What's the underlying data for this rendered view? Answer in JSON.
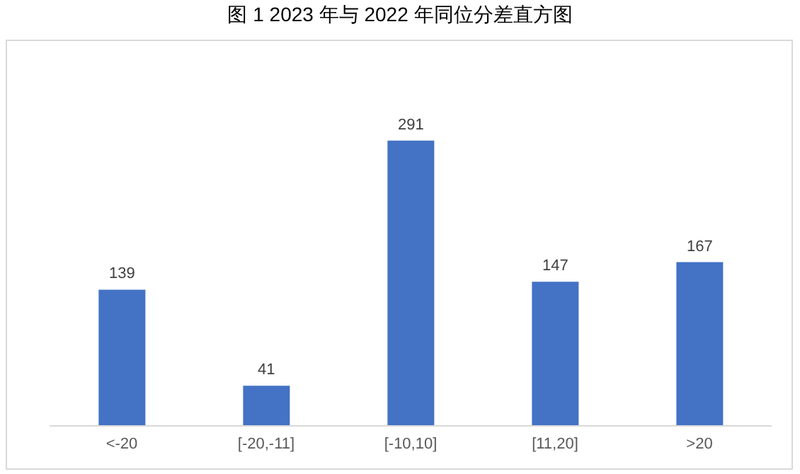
{
  "chart_data": {
    "type": "bar",
    "title": "图 1 2023 年与 2022 年同位分差直方图",
    "categories": [
      "<-20",
      "[-20,-11]",
      "[-10,10]",
      "[11,20]",
      ">20"
    ],
    "values": [
      139,
      41,
      291,
      147,
      167
    ],
    "color": "#4472c4",
    "data_labels": true
  }
}
